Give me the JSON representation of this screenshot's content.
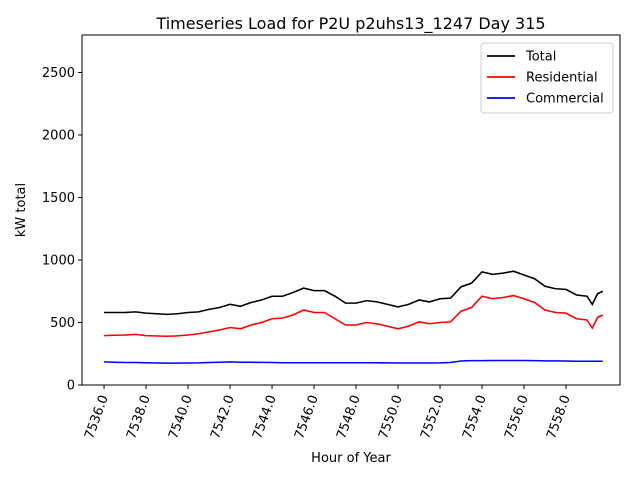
{
  "chart_data": {
    "type": "line",
    "title": "Timeseries Load for P2U p2uhs13_1247  Day 315",
    "xlabel": "Hour of Year",
    "ylabel": "kW total",
    "xlim": [
      7534.95,
      7560.57
    ],
    "ylim": [
      0,
      2800
    ],
    "xticks": [
      7536,
      7538,
      7540,
      7542,
      7544,
      7546,
      7548,
      7550,
      7552,
      7554,
      7556,
      7558
    ],
    "xtick_labels": [
      "7536.0",
      "7538.0",
      "7540.0",
      "7542.0",
      "7544.0",
      "7546.0",
      "7548.0",
      "7550.0",
      "7552.0",
      "7554.0",
      "7556.0",
      "7558.0"
    ],
    "yticks": [
      0,
      500,
      1000,
      1500,
      2000,
      2500
    ],
    "ytick_labels": [
      "0",
      "500",
      "1000",
      "1500",
      "2000",
      "2500"
    ],
    "legend_position": "top-right",
    "grid": false,
    "x": [
      7536,
      7536.5,
      7537,
      7537.5,
      7538,
      7538.5,
      7539,
      7539.5,
      7540,
      7540.5,
      7541,
      7541.5,
      7542,
      7542.5,
      7543,
      7543.5,
      7544,
      7544.5,
      7545,
      7545.5,
      7546,
      7546.5,
      7547,
      7547.5,
      7548,
      7548.5,
      7549,
      7549.5,
      7550,
      7550.5,
      7551,
      7551.5,
      7552,
      7552.5,
      7553,
      7553.5,
      7554,
      7554.5,
      7555,
      7555.5,
      7556,
      7556.5,
      7557,
      7557.5,
      7558,
      7558.5,
      7559,
      7559.25,
      7559.5,
      7559.75
    ],
    "series": [
      {
        "name": "Total",
        "color": "#000000",
        "values": [
          580,
          580,
          580,
          585,
          575,
          570,
          565,
          570,
          580,
          585,
          605,
          620,
          645,
          630,
          660,
          680,
          710,
          710,
          740,
          775,
          755,
          755,
          710,
          655,
          655,
          675,
          665,
          645,
          625,
          645,
          680,
          665,
          690,
          695,
          785,
          815,
          905,
          885,
          895,
          910,
          880,
          850,
          790,
          770,
          765,
          720,
          710,
          645,
          730,
          750
        ]
      },
      {
        "name": "Residential",
        "color": "#ff0000",
        "values": [
          395,
          398,
          400,
          405,
          395,
          392,
          390,
          393,
          400,
          410,
          425,
          440,
          460,
          450,
          480,
          500,
          530,
          535,
          560,
          600,
          580,
          580,
          530,
          480,
          480,
          500,
          490,
          470,
          450,
          470,
          505,
          490,
          500,
          505,
          590,
          620,
          710,
          690,
          700,
          715,
          690,
          660,
          600,
          580,
          575,
          530,
          520,
          455,
          540,
          560
        ]
      },
      {
        "name": "Commercial",
        "color": "#0000ff",
        "values": [
          185,
          182,
          180,
          180,
          178,
          176,
          175,
          175,
          176,
          177,
          180,
          182,
          185,
          182,
          182,
          181,
          180,
          178,
          178,
          178,
          178,
          178,
          178,
          178,
          178,
          178,
          178,
          177,
          176,
          176,
          176,
          176,
          177,
          180,
          192,
          195,
          195,
          196,
          196,
          196,
          196,
          195,
          193,
          193,
          192,
          190,
          190,
          190,
          190,
          190
        ]
      }
    ]
  }
}
